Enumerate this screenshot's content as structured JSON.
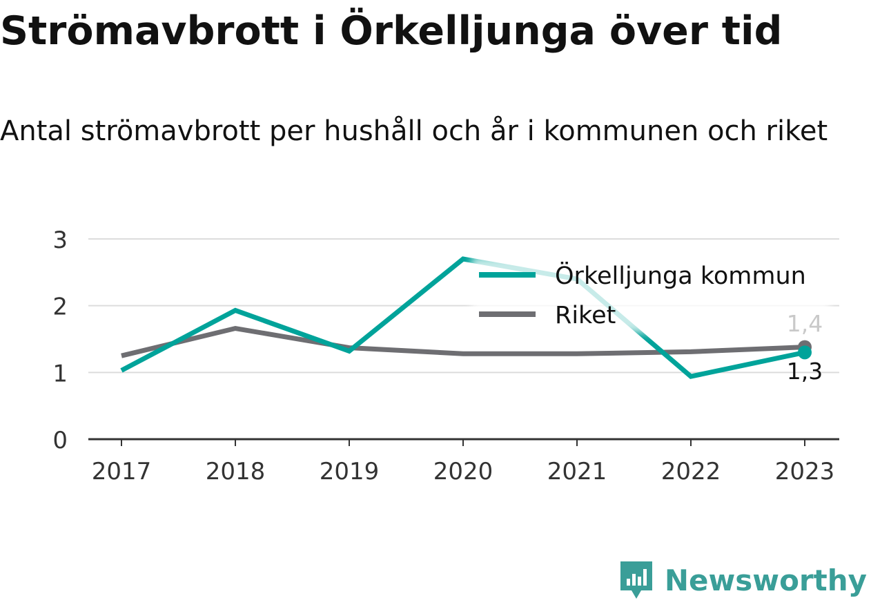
{
  "title": "Strömavbrott i Örkelljunga över tid",
  "subtitle": "Antal strömavbrott per hushåll och år i kommunen och riket",
  "brand": "Newsworthy",
  "chart_data": {
    "type": "line",
    "x": [
      "2017",
      "2018",
      "2019",
      "2020",
      "2021",
      "2022",
      "2023"
    ],
    "yticks": [
      "0",
      "1",
      "2",
      "3"
    ],
    "ylim": [
      0,
      3
    ],
    "grid": true,
    "legend_position": "top-right",
    "series": [
      {
        "name": "Örkelljunga kommun",
        "color": "#00a39a",
        "values": [
          1.03,
          1.93,
          1.32,
          2.7,
          2.4,
          0.94,
          1.3
        ],
        "end_label": "1,3"
      },
      {
        "name": "Riket",
        "color": "#6e6e72",
        "values": [
          1.25,
          1.66,
          1.37,
          1.28,
          1.28,
          1.31,
          1.38
        ],
        "end_label": "1,4"
      }
    ]
  }
}
